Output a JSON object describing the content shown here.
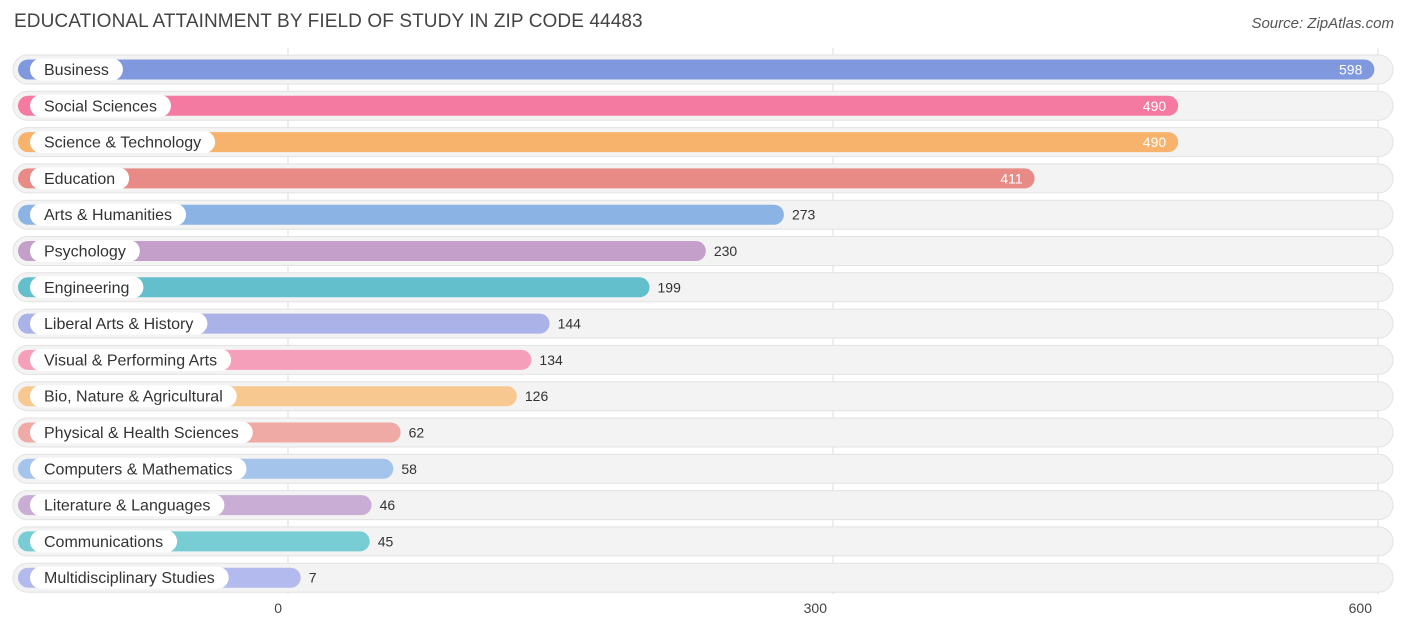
{
  "header": {
    "title": "EDUCATIONAL ATTAINMENT BY FIELD OF STUDY IN ZIP CODE 44483",
    "source": "Source: ZipAtlas.com"
  },
  "chart_data": {
    "type": "bar",
    "orientation": "horizontal",
    "title": "EDUCATIONAL ATTAINMENT BY FIELD OF STUDY IN ZIP CODE 44483",
    "xlabel": "",
    "ylabel": "",
    "xlim": [
      0,
      600
    ],
    "x_ticks": [
      0,
      300,
      600
    ],
    "x_tick_labels": [
      "0",
      "300",
      "600"
    ],
    "grid": true,
    "categories": [
      "Business",
      "Social Sciences",
      "Science & Technology",
      "Education",
      "Arts & Humanities",
      "Psychology",
      "Engineering",
      "Liberal Arts & History",
      "Visual & Performing Arts",
      "Bio, Nature & Agricultural",
      "Physical & Health Sciences",
      "Computers & Mathematics",
      "Literature & Languages",
      "Communications",
      "Multidisciplinary Studies"
    ],
    "values": [
      598,
      490,
      490,
      411,
      273,
      230,
      199,
      144,
      134,
      126,
      62,
      58,
      46,
      45,
      7
    ],
    "value_labels": [
      "598",
      "490",
      "490",
      "411",
      "273",
      "230",
      "199",
      "144",
      "134",
      "126",
      "62",
      "58",
      "46",
      "45",
      "7"
    ],
    "colors": [
      "#7f98de",
      "#f47aa1",
      "#f7b26c",
      "#e88b87",
      "#8bb4e4",
      "#c39fc9",
      "#64bfcd",
      "#aab2e8",
      "#f59fbb",
      "#f8c891",
      "#f0aaa5",
      "#a5c4ec",
      "#c9add5",
      "#78ccd3",
      "#b3baee"
    ]
  }
}
